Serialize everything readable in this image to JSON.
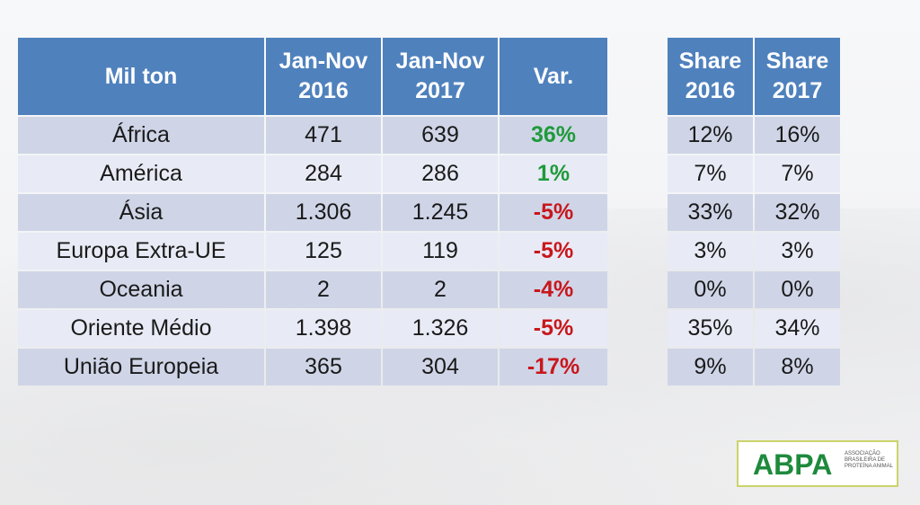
{
  "table": {
    "headers": [
      "Mil ton",
      "Jan-Nov 2016",
      "Jan-Nov 2017",
      "Var."
    ],
    "rows": [
      {
        "region": "África",
        "v2016": "471",
        "v2017": "639",
        "var": "36%",
        "var_sign": "pos"
      },
      {
        "region": "América",
        "v2016": "284",
        "v2017": "286",
        "var": "1%",
        "var_sign": "pos"
      },
      {
        "region": "Ásia",
        "v2016": "1.306",
        "v2017": "1.245",
        "var": "-5%",
        "var_sign": "neg"
      },
      {
        "region": "Europa Extra-UE",
        "v2016": "125",
        "v2017": "119",
        "var": "-5%",
        "var_sign": "neg"
      },
      {
        "region": "Oceania",
        "v2016": "2",
        "v2017": "2",
        "var": "-4%",
        "var_sign": "neg"
      },
      {
        "region": "Oriente Médio",
        "v2016": "1.398",
        "v2017": "1.326",
        "var": "-5%",
        "var_sign": "neg"
      },
      {
        "region": "União Europeia",
        "v2016": "365",
        "v2017": "304",
        "var": "-17%",
        "var_sign": "neg"
      }
    ]
  },
  "share": {
    "headers": [
      "Share 2016",
      "Share 2017"
    ],
    "rows": [
      [
        "12%",
        "16%"
      ],
      [
        "7%",
        "7%"
      ],
      [
        "33%",
        "32%"
      ],
      [
        "3%",
        "3%"
      ],
      [
        "0%",
        "0%"
      ],
      [
        "35%",
        "34%"
      ],
      [
        "9%",
        "8%"
      ]
    ]
  },
  "colors": {
    "header_bg": "#4f81bd",
    "row_odd": "#cfd5e7",
    "row_even": "#e8ebf5",
    "positive": "#1f9a3a",
    "negative": "#c8171c"
  },
  "logo": {
    "name": "ABPA",
    "subtitle": "ASSOCIAÇÃO BRASILEIRA DE PROTEÍNA ANIMAL"
  }
}
